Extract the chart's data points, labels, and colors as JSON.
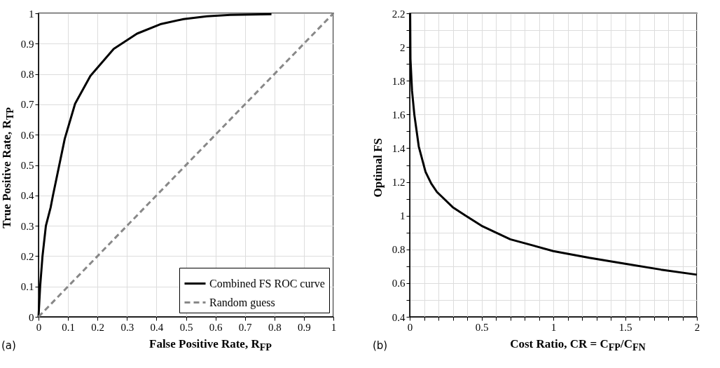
{
  "chart_data": [
    {
      "type": "line",
      "xlabel": "False Positive Rate, R$_{FP}$",
      "ylabel": "True Positive Rate, R$_{TP}$",
      "annotations": [
        "(a)"
      ],
      "series": [
        {
          "name": "Combined FS ROC curve",
          "color": "#000000",
          "line_style": "solid",
          "x": [
            0,
            0.0055,
            0.0135,
            0.025,
            0.041,
            0.049,
            0.089,
            0.124,
            0.176,
            0.255,
            0.334,
            0.413,
            0.492,
            0.571,
            0.65,
            0.79
          ],
          "values": [
            0,
            0.1,
            0.2,
            0.3,
            0.36,
            0.4,
            0.587,
            0.702,
            0.794,
            0.883,
            0.933,
            0.964,
            0.981,
            0.99,
            0.995,
            0.997
          ]
        },
        {
          "name": "Random guess",
          "color": "#888888",
          "line_style": "dashed",
          "x": [
            0,
            1
          ],
          "values": [
            0,
            1
          ]
        }
      ],
      "xlim": [
        0,
        1
      ],
      "ylim": [
        0,
        1
      ],
      "xticks": [
        0,
        0.1,
        0.2,
        0.3,
        0.4,
        0.5,
        0.6,
        0.7,
        0.8,
        0.9,
        1
      ],
      "yticks": [
        0,
        0.1,
        0.2,
        0.3,
        0.4,
        0.5,
        0.6,
        0.7,
        0.8,
        0.9,
        1
      ],
      "grid": true,
      "legend": "bottom right"
    },
    {
      "type": "line",
      "xlabel": "Cost Ratio, CR = C$_{FP}$/C$_{FN}$",
      "ylabel": "Optimal FS",
      "annotations": [
        "(b)"
      ],
      "series": [
        {
          "color": "#000000",
          "line_style": "solid",
          "x": [
            0.003,
            0.005,
            0.016,
            0.032,
            0.063,
            0.11,
            0.15,
            0.19,
            0.3,
            0.39,
            0.5,
            0.7,
            1,
            1.25,
            1.5,
            1.75,
            2
          ],
          "values": [
            2.2,
            1.93,
            1.74,
            1.6,
            1.41,
            1.26,
            1.19,
            1.14,
            1.05,
            1.0,
            0.94,
            0.86,
            0.79,
            0.75,
            0.715,
            0.68,
            0.65
          ]
        }
      ],
      "xlim": [
        0,
        2
      ],
      "ylim": [
        0.4,
        2.2
      ],
      "xticks": [
        0,
        {
          "value": 0.1,
          "label": null
        },
        {
          "value": 0.2,
          "label": null
        },
        {
          "value": 0.3,
          "label": null
        },
        {
          "value": 0.4,
          "label": null
        },
        0.5,
        {
          "value": 0.6,
          "label": null
        },
        {
          "value": 0.7,
          "label": null
        },
        {
          "value": 0.8,
          "label": null
        },
        {
          "value": 0.9,
          "label": null
        },
        1,
        {
          "value": 1.1,
          "label": null
        },
        {
          "value": 1.2,
          "label": null
        },
        {
          "value": 1.3,
          "label": null
        },
        {
          "value": 1.4,
          "label": null
        },
        1.5,
        {
          "value": 1.6,
          "label": null
        },
        {
          "value": 1.7,
          "label": null
        },
        {
          "value": 1.8,
          "label": null
        },
        {
          "value": 1.9,
          "label": null
        },
        2
      ],
      "yticks": [
        0.4,
        {
          "value": 0.5,
          "label": null
        },
        0.6,
        {
          "value": 0.7,
          "label": null
        },
        0.8,
        {
          "value": 0.9,
          "label": null
        },
        1,
        {
          "value": 1.1,
          "label": null
        },
        1.2,
        {
          "value": 1.3,
          "label": null
        },
        1.4,
        {
          "value": 1.5,
          "label": null
        },
        1.6,
        {
          "value": 1.7,
          "label": null
        },
        1.8,
        {
          "value": 1.9,
          "label": null
        },
        2,
        {
          "value": 2.1,
          "label": null
        },
        2.2
      ],
      "grid": true
    }
  ]
}
